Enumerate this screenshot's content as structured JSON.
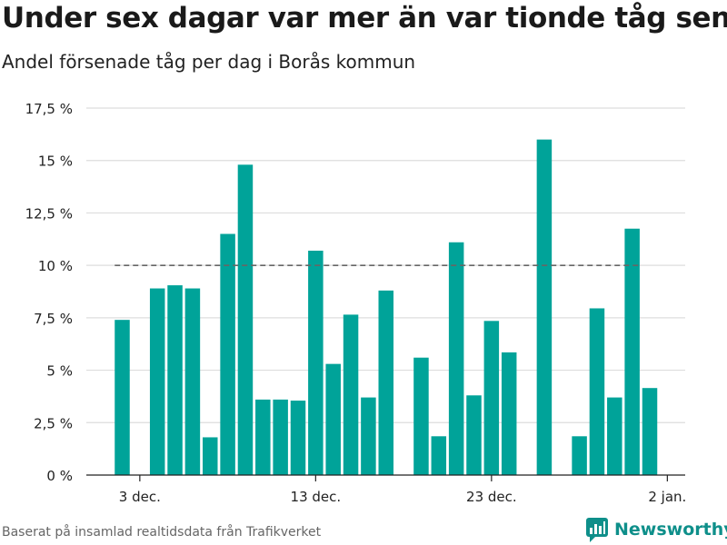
{
  "title": "Under sex dagar var mer än var tionde tåg sent",
  "subtitle": "Andel försenade tåg per dag i Borås kommun",
  "footer": "Baserat på insamlad realtidsdata från Trafikverket",
  "brand": "Newsworthy",
  "colors": {
    "bar": "#00a399",
    "threshold": "#666666",
    "grid": "#dddddd",
    "brand": "#0e8f8a"
  },
  "chart_data": {
    "type": "bar",
    "xlabel": "",
    "ylabel": "",
    "ylim": [
      0,
      17.5
    ],
    "yticks": [
      0,
      2.5,
      5,
      7.5,
      10,
      12.5,
      15,
      17.5
    ],
    "ytick_labels": [
      "0 %",
      "2,5 %",
      "5 %",
      "7,5 %",
      "10 %",
      "12,5 %",
      "15 %",
      "17,5 %"
    ],
    "xticks": [
      {
        "day": 3,
        "label": "3 dec."
      },
      {
        "day": 13,
        "label": "13 dec."
      },
      {
        "day": 23,
        "label": "23 dec."
      },
      {
        "day": 33,
        "label": "2 jan."
      }
    ],
    "x_start_day": 1,
    "x_end_day": 32,
    "days": [
      1,
      2,
      3,
      4,
      5,
      6,
      7,
      8,
      9,
      10,
      11,
      12,
      13,
      14,
      15,
      16,
      17,
      18,
      19,
      20,
      21,
      22,
      23,
      24,
      25,
      26,
      27,
      28,
      29,
      30,
      31,
      32
    ],
    "values": [
      null,
      7.4,
      null,
      8.9,
      9.05,
      8.9,
      1.8,
      11.5,
      14.8,
      3.6,
      3.6,
      3.55,
      10.7,
      5.3,
      7.65,
      3.7,
      8.8,
      null,
      5.6,
      1.85,
      11.1,
      3.8,
      7.35,
      5.85,
      null,
      16.0,
      null,
      1.85,
      7.95,
      3.7,
      11.75,
      4.15
    ],
    "threshold": {
      "value": 10,
      "from_day": 2,
      "to_day": 31
    }
  }
}
